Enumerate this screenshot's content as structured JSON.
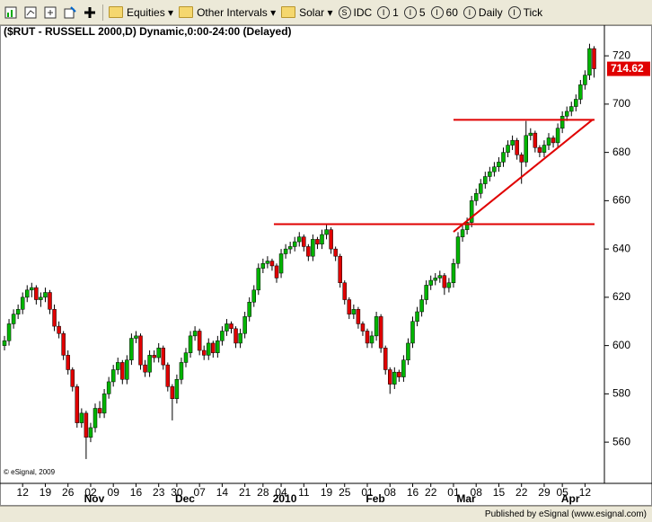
{
  "toolbar": {
    "items": [
      "Equities",
      "Other Intervals",
      "Solar",
      "IDC",
      "1",
      "5",
      "60",
      "Daily",
      "Tick"
    ]
  },
  "chart_data": {
    "type": "candlestick",
    "title": "($RUT - RUSSELL 2000,D) Dynamic,0:00-24:00 (Delayed)",
    "copyright": "© eSignal, 2009",
    "footer": "Published by eSignal (www.esignal.com)",
    "up_color": "#00b400",
    "down_color": "#e00000",
    "annotation_color": "#e00000",
    "categories": [
      null,
      null,
      null,
      null,
      "12",
      null,
      null,
      null,
      null,
      "19",
      null,
      null,
      null,
      null,
      "26",
      null,
      null,
      null,
      null,
      "02",
      null,
      null,
      null,
      null,
      "09",
      null,
      null,
      null,
      null,
      "16",
      null,
      null,
      null,
      null,
      "23",
      null,
      null,
      null,
      "30",
      null,
      null,
      null,
      null,
      "07",
      null,
      null,
      null,
      null,
      "14",
      null,
      null,
      null,
      null,
      "21",
      null,
      null,
      null,
      "28",
      null,
      null,
      null,
      "04",
      null,
      null,
      null,
      null,
      "11",
      null,
      null,
      null,
      null,
      "19",
      null,
      null,
      null,
      "25",
      null,
      null,
      null,
      null,
      "01",
      null,
      null,
      null,
      null,
      "08",
      null,
      null,
      null,
      null,
      "16",
      null,
      null,
      null,
      "22",
      null,
      null,
      null,
      null,
      "01",
      null,
      null,
      null,
      null,
      "08",
      null,
      null,
      null,
      null,
      "15",
      null,
      null,
      null,
      null,
      "22",
      null,
      null,
      null,
      null,
      "29",
      null,
      null,
      null,
      "05",
      null,
      null,
      null,
      null,
      "12",
      null,
      null
    ],
    "month_labels": [
      null,
      null,
      null,
      null,
      null,
      null,
      null,
      null,
      null,
      null,
      null,
      null,
      null,
      null,
      null,
      null,
      null,
      null,
      null,
      "Nov",
      null,
      null,
      null,
      null,
      null,
      null,
      null,
      null,
      null,
      null,
      null,
      null,
      null,
      null,
      null,
      null,
      null,
      null,
      null,
      "Dec",
      null,
      null,
      null,
      null,
      null,
      null,
      null,
      null,
      null,
      null,
      null,
      null,
      null,
      null,
      null,
      null,
      null,
      null,
      null,
      null,
      null,
      "2010",
      null,
      null,
      null,
      null,
      null,
      null,
      null,
      null,
      null,
      null,
      null,
      null,
      null,
      null,
      null,
      null,
      null,
      null,
      null,
      "Feb",
      null,
      null,
      null,
      null,
      null,
      null,
      null,
      null,
      null,
      null,
      null,
      null,
      null,
      null,
      null,
      null,
      null,
      null,
      null,
      "Mar",
      null,
      null,
      null,
      null,
      null,
      null,
      null,
      null,
      null,
      null,
      null,
      null,
      null,
      null,
      null,
      null,
      null,
      null,
      null,
      null,
      null,
      null,
      "Apr",
      null,
      null,
      null,
      null,
      null,
      null,
      null,
      null
    ],
    "ohlc": [
      [
        600,
        604,
        598,
        602
      ],
      [
        602,
        611,
        600,
        609
      ],
      [
        609,
        615,
        607,
        613
      ],
      [
        613,
        617,
        611,
        615
      ],
      [
        615,
        622,
        613,
        620
      ],
      [
        620,
        625,
        618,
        623
      ],
      [
        623,
        626,
        620,
        624
      ],
      [
        624,
        625,
        617,
        619
      ],
      [
        619,
        622,
        616,
        620
      ],
      [
        620,
        624,
        618,
        622
      ],
      [
        622,
        623,
        613,
        615
      ],
      [
        615,
        617,
        606,
        608
      ],
      [
        608,
        610,
        603,
        605
      ],
      [
        605,
        606,
        594,
        596
      ],
      [
        596,
        598,
        588,
        590
      ],
      [
        590,
        591,
        581,
        583
      ],
      [
        583,
        584,
        566,
        568
      ],
      [
        568,
        574,
        566,
        572
      ],
      [
        572,
        573,
        553,
        562
      ],
      [
        562,
        568,
        560,
        566
      ],
      [
        566,
        576,
        564,
        574
      ],
      [
        574,
        577,
        570,
        572
      ],
      [
        572,
        582,
        570,
        580
      ],
      [
        580,
        587,
        578,
        585
      ],
      [
        585,
        592,
        583,
        590
      ],
      [
        590,
        595,
        588,
        593
      ],
      [
        593,
        594,
        584,
        586
      ],
      [
        586,
        596,
        584,
        594
      ],
      [
        594,
        605,
        592,
        603
      ],
      [
        603,
        606,
        601,
        604
      ],
      [
        604,
        605,
        590,
        592
      ],
      [
        592,
        594,
        587,
        589
      ],
      [
        589,
        598,
        587,
        596
      ],
      [
        596,
        598,
        593,
        595
      ],
      [
        595,
        601,
        593,
        599
      ],
      [
        599,
        600,
        590,
        592
      ],
      [
        592,
        593,
        581,
        583
      ],
      [
        583,
        584,
        569,
        578
      ],
      [
        578,
        588,
        576,
        586
      ],
      [
        586,
        595,
        584,
        593
      ],
      [
        593,
        599,
        591,
        597
      ],
      [
        597,
        606,
        595,
        604
      ],
      [
        604,
        608,
        602,
        606
      ],
      [
        606,
        607,
        596,
        598
      ],
      [
        598,
        600,
        594,
        596
      ],
      [
        596,
        603,
        594,
        601
      ],
      [
        601,
        602,
        595,
        597
      ],
      [
        597,
        604,
        595,
        602
      ],
      [
        602,
        608,
        600,
        606
      ],
      [
        606,
        611,
        604,
        609
      ],
      [
        609,
        610,
        605,
        607
      ],
      [
        607,
        608,
        599,
        601
      ],
      [
        601,
        607,
        599,
        605
      ],
      [
        605,
        614,
        603,
        612
      ],
      [
        612,
        620,
        610,
        618
      ],
      [
        618,
        625,
        616,
        623
      ],
      [
        623,
        634,
        621,
        632
      ],
      [
        632,
        636,
        630,
        634
      ],
      [
        634,
        637,
        632,
        635
      ],
      [
        635,
        636,
        631,
        633
      ],
      [
        633,
        634,
        626,
        628
      ],
      [
        630,
        640,
        628,
        638
      ],
      [
        638,
        642,
        636,
        640
      ],
      [
        640,
        643,
        638,
        641
      ],
      [
        641,
        645,
        639,
        643
      ],
      [
        643,
        647,
        641,
        645
      ],
      [
        645,
        646,
        639,
        641
      ],
      [
        641,
        642,
        635,
        637
      ],
      [
        637,
        646,
        635,
        644
      ],
      [
        644,
        645,
        640,
        642
      ],
      [
        642,
        648,
        640,
        646
      ],
      [
        646,
        650,
        644,
        648
      ],
      [
        648,
        649,
        638,
        640
      ],
      [
        640,
        641,
        635,
        637
      ],
      [
        637,
        638,
        624,
        626
      ],
      [
        626,
        627,
        617,
        619
      ],
      [
        619,
        620,
        611,
        613
      ],
      [
        613,
        617,
        611,
        615
      ],
      [
        615,
        616,
        607,
        609
      ],
      [
        609,
        610,
        604,
        606
      ],
      [
        606,
        607,
        599,
        601
      ],
      [
        601,
        606,
        599,
        604
      ],
      [
        604,
        614,
        602,
        612
      ],
      [
        612,
        613,
        597,
        599
      ],
      [
        599,
        600,
        588,
        590
      ],
      [
        590,
        591,
        580,
        584
      ],
      [
        584,
        591,
        582,
        589
      ],
      [
        589,
        590,
        585,
        587
      ],
      [
        587,
        596,
        585,
        594
      ],
      [
        594,
        603,
        592,
        601
      ],
      [
        601,
        612,
        599,
        610
      ],
      [
        610,
        616,
        608,
        614
      ],
      [
        614,
        621,
        612,
        619
      ],
      [
        619,
        627,
        617,
        625
      ],
      [
        625,
        629,
        623,
        627
      ],
      [
        627,
        630,
        625,
        628
      ],
      [
        628,
        631,
        626,
        629
      ],
      [
        629,
        630,
        621,
        624
      ],
      [
        624,
        628,
        622,
        626
      ],
      [
        626,
        636,
        624,
        634
      ],
      [
        634,
        647,
        632,
        645
      ],
      [
        645,
        650,
        643,
        648
      ],
      [
        648,
        653,
        646,
        651
      ],
      [
        651,
        662,
        649,
        660
      ],
      [
        660,
        665,
        658,
        663
      ],
      [
        663,
        669,
        661,
        667
      ],
      [
        667,
        672,
        665,
        670
      ],
      [
        670,
        674,
        668,
        672
      ],
      [
        672,
        676,
        670,
        674
      ],
      [
        674,
        678,
        672,
        676
      ],
      [
        676,
        682,
        674,
        680
      ],
      [
        680,
        685,
        678,
        683
      ],
      [
        683,
        687,
        681,
        685
      ],
      [
        685,
        686,
        677,
        679
      ],
      [
        679,
        680,
        667,
        676
      ],
      [
        676,
        693,
        674,
        687
      ],
      [
        687,
        690,
        685,
        688
      ],
      [
        688,
        689,
        680,
        682
      ],
      [
        682,
        683,
        678,
        680
      ],
      [
        680,
        685,
        678,
        683
      ],
      [
        683,
        688,
        681,
        686
      ],
      [
        686,
        687,
        682,
        684
      ],
      [
        684,
        692,
        682,
        690
      ],
      [
        690,
        697,
        688,
        695
      ],
      [
        695,
        699,
        693,
        697
      ],
      [
        697,
        701,
        695,
        699
      ],
      [
        699,
        704,
        697,
        702
      ],
      [
        702,
        710,
        700,
        708
      ],
      [
        708,
        714,
        706,
        712
      ],
      [
        712,
        725,
        710,
        723
      ],
      [
        723,
        724,
        711,
        714.62
      ]
    ],
    "annotation_lines": [
      {
        "x0": 59.4,
        "x1": 130.1,
        "y0": 650.3,
        "y1": 650.3
      },
      {
        "x0": 99.0,
        "x1": 130.1,
        "y0": 693.5,
        "y1": 693.5
      },
      {
        "x0": 99.0,
        "x1": 129.7,
        "y0": 647.1,
        "y1": 693.6
      }
    ],
    "ylim": [
      543.3,
      732.7
    ],
    "yticks": [
      560,
      580,
      600,
      620,
      640,
      660,
      680,
      700,
      720
    ],
    "grid": false
  }
}
